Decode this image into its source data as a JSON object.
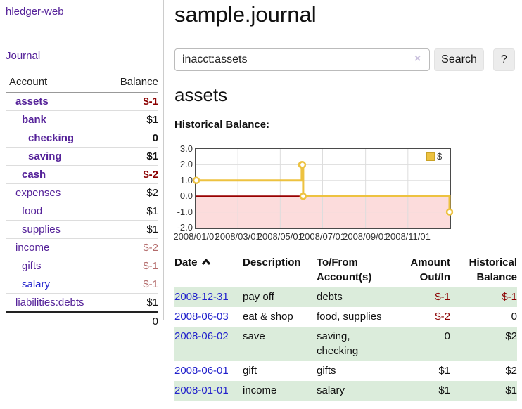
{
  "sidebar": {
    "brand": "hledger-web",
    "nav_journal": "Journal",
    "table_headers": {
      "account": "Account",
      "balance": "Balance"
    },
    "accounts": [
      {
        "name": "assets",
        "indent": 1,
        "bold": true,
        "balance": "$-1",
        "balance_class": "neg"
      },
      {
        "name": "bank",
        "indent": 2,
        "bold": true,
        "balance": "$1",
        "balance_class": ""
      },
      {
        "name": "checking",
        "indent": 3,
        "bold": true,
        "balance": "0",
        "balance_class": ""
      },
      {
        "name": "saving",
        "indent": 3,
        "bold": true,
        "balance": "$1",
        "balance_class": ""
      },
      {
        "name": "cash",
        "indent": 2,
        "bold": true,
        "balance": "$-2",
        "balance_class": "neg"
      },
      {
        "name": "expenses",
        "indent": 1,
        "bold": false,
        "balance": "$2",
        "balance_class": ""
      },
      {
        "name": "food",
        "indent": 2,
        "bold": false,
        "balance": "$1",
        "balance_class": ""
      },
      {
        "name": "supplies",
        "indent": 2,
        "bold": false,
        "balance": "$1",
        "balance_class": ""
      },
      {
        "name": "income",
        "indent": 1,
        "bold": false,
        "balance": "$-2",
        "balance_class": "negsoft"
      },
      {
        "name": "gifts",
        "indent": 2,
        "bold": false,
        "balance": "$-1",
        "balance_class": "negsoft"
      },
      {
        "name": "salary",
        "indent": 2,
        "bold": false,
        "balance": "$-1",
        "balance_class": "negsoft",
        "link_style": "blue"
      },
      {
        "name": "liabilities:debts",
        "indent": 1,
        "bold": false,
        "balance": "$1",
        "balance_class": ""
      }
    ],
    "total": "0"
  },
  "main": {
    "title": "sample.journal",
    "search": {
      "value": "inacct:assets",
      "clear_icon": "×",
      "button_label": "Search",
      "help_label": "?"
    },
    "account_heading": "assets",
    "register": {
      "columns": [
        {
          "line1": "Date",
          "line2": "",
          "align": "left",
          "sort": "asc"
        },
        {
          "line1": "Description",
          "line2": "",
          "align": "left"
        },
        {
          "line1": "To/From",
          "line2": "Account(s)",
          "align": "left"
        },
        {
          "line1": "Amount",
          "line2": "Out/In",
          "align": "right"
        },
        {
          "line1": "Historical",
          "line2": "Balance",
          "align": "right"
        }
      ],
      "rows": [
        {
          "date": "2008-12-31",
          "description": "pay off",
          "accounts": "debts",
          "amount": "$-1",
          "amount_neg": true,
          "balance": "$-1",
          "balance_neg": true,
          "shaded": true
        },
        {
          "date": "2008-06-03",
          "description": "eat & shop",
          "accounts": "food, supplies",
          "amount": "$-2",
          "amount_neg": true,
          "balance": "0",
          "balance_neg": false,
          "shaded": false
        },
        {
          "date": "2008-06-02",
          "description": "save",
          "accounts": "saving,\nchecking",
          "amount": "0",
          "amount_neg": false,
          "balance": "$2",
          "balance_neg": false,
          "shaded": true
        },
        {
          "date": "2008-06-01",
          "description": "gift",
          "accounts": "gifts",
          "amount": "$1",
          "amount_neg": false,
          "balance": "$2",
          "balance_neg": false,
          "shaded": false
        },
        {
          "date": "2008-01-01",
          "description": "income",
          "accounts": "salary",
          "amount": "$1",
          "amount_neg": false,
          "balance": "$1",
          "balance_neg": false,
          "shaded": true
        }
      ]
    }
  },
  "chart_data": {
    "type": "line",
    "step": true,
    "title": "Historical Balance:",
    "series": [
      {
        "name": "$",
        "color": "#edc240",
        "points": [
          [
            "2008-01-01",
            1
          ],
          [
            "2008-06-01",
            2
          ],
          [
            "2008-06-02",
            2
          ],
          [
            "2008-06-03",
            0
          ],
          [
            "2008-12-31",
            -1
          ]
        ]
      }
    ],
    "x_range": [
      "2008-01-01",
      "2008-12-31"
    ],
    "ylim": [
      -2,
      3
    ],
    "yticks": [
      3.0,
      2.0,
      1.0,
      0.0,
      -1.0,
      -2.0
    ],
    "xticks": [
      {
        "label": "2008/01/01",
        "date": "2008-01-01"
      },
      {
        "label": "2008/03/01",
        "date": "2008-03-01"
      },
      {
        "label": "2008/05/01",
        "date": "2008-05-01"
      },
      {
        "label": "2008/07/01",
        "date": "2008-07-01"
      },
      {
        "label": "2008/09/01",
        "date": "2008-09-01"
      },
      {
        "label": "2008/11/01",
        "date": "2008-11-01"
      }
    ],
    "grid_color": "#dddddd",
    "negative_region_color": "#fcdcdc",
    "zero_line_color": "#990000",
    "legend_position": "top-right"
  },
  "colors": {
    "link_purple": "#552299",
    "link_blue": "#2222cc",
    "negative_strong": "#8b0000",
    "negative_soft": "#b36a6a",
    "row_stripe_green": "#dbecdb",
    "series_gold": "#edc240"
  }
}
